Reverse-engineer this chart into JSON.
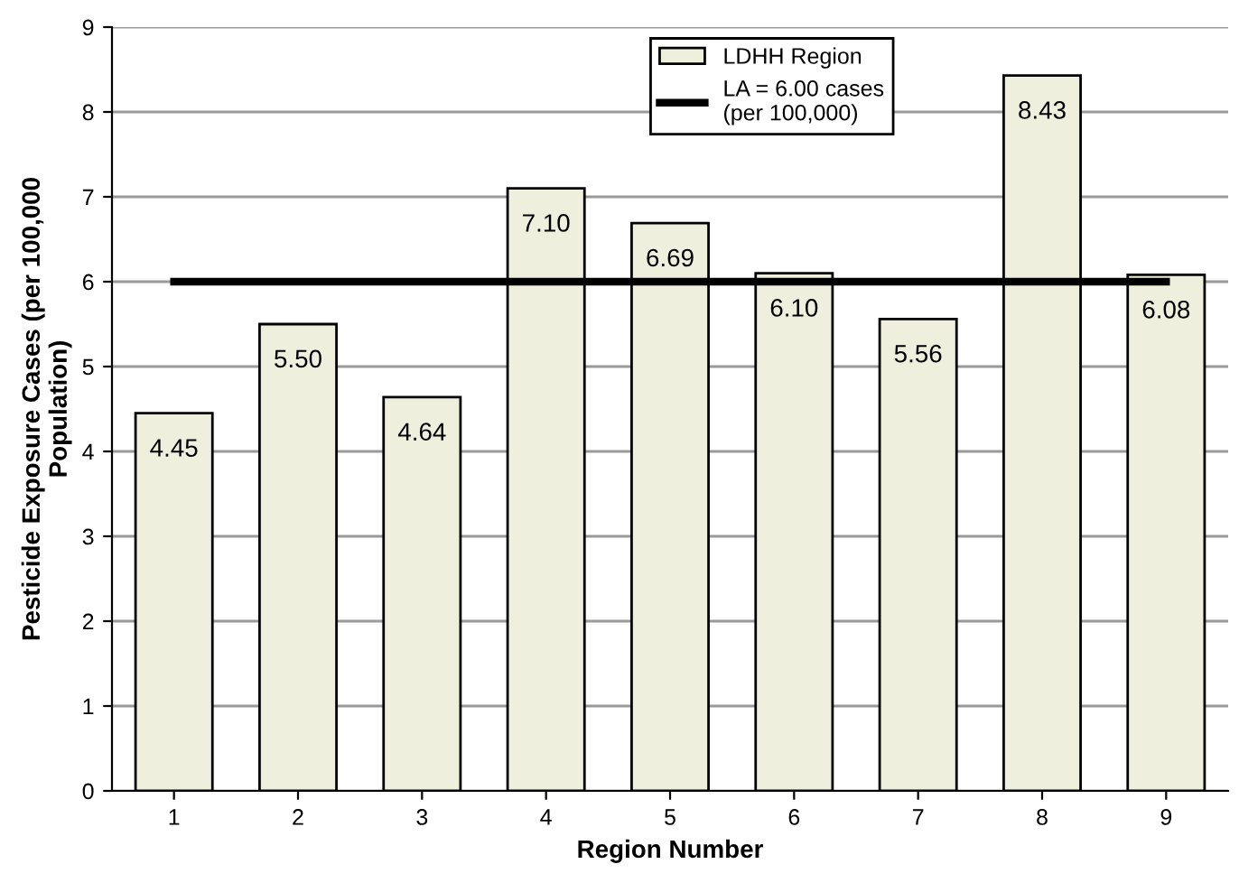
{
  "chart_data": {
    "type": "bar",
    "xlabel": "Region Number",
    "ylabel": "Pesticide Exposure Cases (per 100,000\nPopulation)",
    "categories": [
      "1",
      "2",
      "3",
      "4",
      "5",
      "6",
      "7",
      "8",
      "9"
    ],
    "series": [
      {
        "name": "LDHH Region",
        "color": "#eef0dd",
        "values": [
          4.45,
          5.5,
          4.64,
          7.1,
          6.69,
          6.1,
          5.56,
          8.43,
          6.08
        ],
        "value_labels": [
          "4.45",
          "5.50",
          "4.64",
          "7.10",
          "6.69",
          "6.10",
          "5.56",
          "8.43",
          "6.08"
        ]
      }
    ],
    "ref_lines": [
      {
        "axis": "y",
        "value": 6,
        "label": "LA = 6.00 cases\n(per 100,000)",
        "color": "#000000",
        "line_style": "solid"
      }
    ],
    "ylim": [
      0,
      9
    ],
    "yticks": [
      0,
      1,
      2,
      3,
      4,
      5,
      6,
      7,
      8,
      9
    ],
    "grid": "y",
    "legend": "top right"
  }
}
